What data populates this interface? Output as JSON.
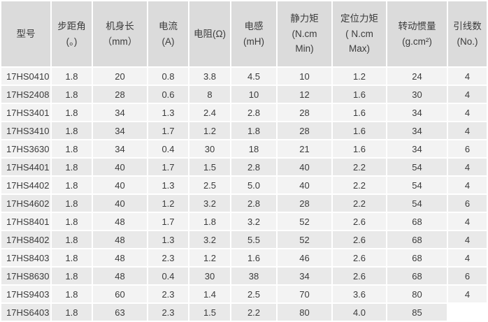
{
  "chart_data": {
    "type": "table",
    "title": "Stepper motor specification table",
    "columns": [
      {
        "id": "model",
        "lines": [
          "型号"
        ]
      },
      {
        "id": "step-angle",
        "lines": [
          "步距角",
          "(。)"
        ]
      },
      {
        "id": "body-length",
        "lines": [
          "机身长",
          "（mm）"
        ]
      },
      {
        "id": "current",
        "lines": [
          "电流",
          "(A)"
        ]
      },
      {
        "id": "resistance",
        "lines": [
          "电阻(Ω)"
        ]
      },
      {
        "id": "inductance",
        "lines": [
          "电感",
          "(mH)"
        ]
      },
      {
        "id": "holding-torque",
        "lines": [
          "静力矩",
          "(N.cm",
          "Min)"
        ]
      },
      {
        "id": "detent-torque",
        "lines": [
          "定位力矩",
          "( N.cm",
          "Max)"
        ]
      },
      {
        "id": "rotor-inertia",
        "lines": [
          "转动惯量",
          "(g.cm²)"
        ]
      },
      {
        "id": "lead-wires",
        "lines": [
          "引线数",
          "(No.)"
        ]
      }
    ],
    "rows": [
      [
        "17HS0410",
        "1.8",
        "20",
        "0.8",
        "3.8",
        "4.5",
        "10",
        "1.2",
        "24",
        "4"
      ],
      [
        "17HS2408",
        "1.8",
        "28",
        "0.6",
        "8",
        "10",
        "12",
        "1.6",
        "30",
        "4"
      ],
      [
        "17HS3401",
        "1.8",
        "34",
        "1.3",
        "2.4",
        "2.8",
        "28",
        "1.6",
        "34",
        "4"
      ],
      [
        "17HS3410",
        "1.8",
        "34",
        "1.7",
        "1.2",
        "1.8",
        "28",
        "1.6",
        "34",
        "4"
      ],
      [
        "17HS3630",
        "1.8",
        "34",
        "0.4",
        "30",
        "18",
        "21",
        "1.6",
        "34",
        "6"
      ],
      [
        "17HS4401",
        "1.8",
        "40",
        "1.7",
        "1.5",
        "2.8",
        "40",
        "2.2",
        "54",
        "4"
      ],
      [
        "17HS4402",
        "1.8",
        "40",
        "1.3",
        "2.5",
        "5.0",
        "40",
        "2.2",
        "54",
        "4"
      ],
      [
        "17HS4602",
        "1.8",
        "40",
        "1.2",
        "3.2",
        "2.8",
        "28",
        "2.2",
        "54",
        "6"
      ],
      [
        "17HS8401",
        "1.8",
        "48",
        "1.7",
        "1.8",
        "3.2",
        "52",
        "2.6",
        "68",
        "4"
      ],
      [
        "17HS8402",
        "1.8",
        "48",
        "1.3",
        "3.2",
        "5.5",
        "52",
        "2.6",
        "68",
        "4"
      ],
      [
        "17HS8403",
        "1.8",
        "48",
        "2.3",
        "1.2",
        "1.6",
        "46",
        "2.6",
        "68",
        "4"
      ],
      [
        "17HS8630",
        "1.8",
        "48",
        "0.4",
        "30",
        "38",
        "34",
        "2.6",
        "68",
        "6"
      ],
      [
        "17HS9403",
        "1.8",
        "60",
        "2.3",
        "1.4",
        "2.5",
        "70",
        "3.6",
        "80",
        "4"
      ],
      [
        "17HS6403",
        "1.8",
        "63",
        "2.3",
        "1.5",
        "2.2",
        "80",
        "4.0",
        "85",
        ""
      ]
    ]
  },
  "colors": {
    "header_bg": "#dbdbdb",
    "row_odd_bg": "#f3f3f3",
    "row_even_bg": "#e9e9e9",
    "gap": "#ffffff",
    "text": "#3b3b3b"
  }
}
